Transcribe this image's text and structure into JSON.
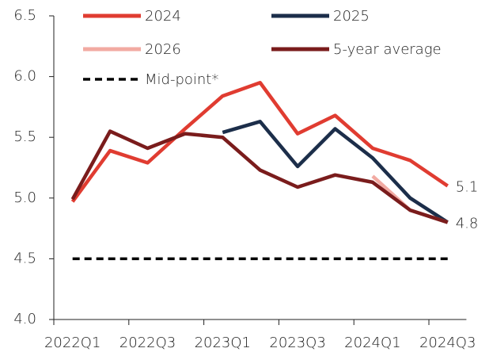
{
  "chart_data": {
    "type": "line",
    "categories": [
      "2022Q1",
      null,
      "2022Q3",
      null,
      "2023Q1",
      null,
      "2023Q3",
      null,
      "2024Q1",
      null,
      "2024Q3"
    ],
    "series": [
      {
        "name": "2024",
        "color": "#e03c31",
        "values": [
          4.97,
          5.39,
          5.29,
          5.57,
          5.84,
          5.95,
          5.53,
          5.68,
          5.41,
          5.31,
          5.1
        ]
      },
      {
        "name": "2025",
        "color": "#1c2e4a",
        "values": [
          null,
          null,
          null,
          null,
          5.54,
          5.63,
          5.26,
          5.57,
          5.33,
          5.0,
          4.8
        ]
      },
      {
        "name": "2026",
        "color": "#f2aaa2",
        "values": [
          null,
          null,
          null,
          null,
          null,
          null,
          null,
          null,
          5.18,
          4.9,
          4.8
        ]
      },
      {
        "name": "5-year average",
        "color": "#7a1c1c",
        "values": [
          4.99,
          5.55,
          5.41,
          5.53,
          5.5,
          5.23,
          5.09,
          5.19,
          5.13,
          4.9,
          4.8
        ]
      },
      {
        "name": "Mid-point*",
        "color": "#000000",
        "dashed": true,
        "values": [
          4.5,
          4.5,
          4.5,
          4.5,
          4.5,
          4.5,
          4.5,
          4.5,
          4.5,
          4.5,
          4.5
        ]
      }
    ],
    "annotations": [
      "5.1",
      "4.8"
    ],
    "ylim": [
      4.0,
      6.5
    ],
    "yticks": [
      {
        "value": 4.0,
        "label": "4.0"
      },
      4.5,
      {
        "value": 5.0,
        "label": "5.0"
      },
      5.5,
      {
        "value": 6.0,
        "label": "6.0"
      },
      6.5
    ],
    "legend": "top"
  }
}
